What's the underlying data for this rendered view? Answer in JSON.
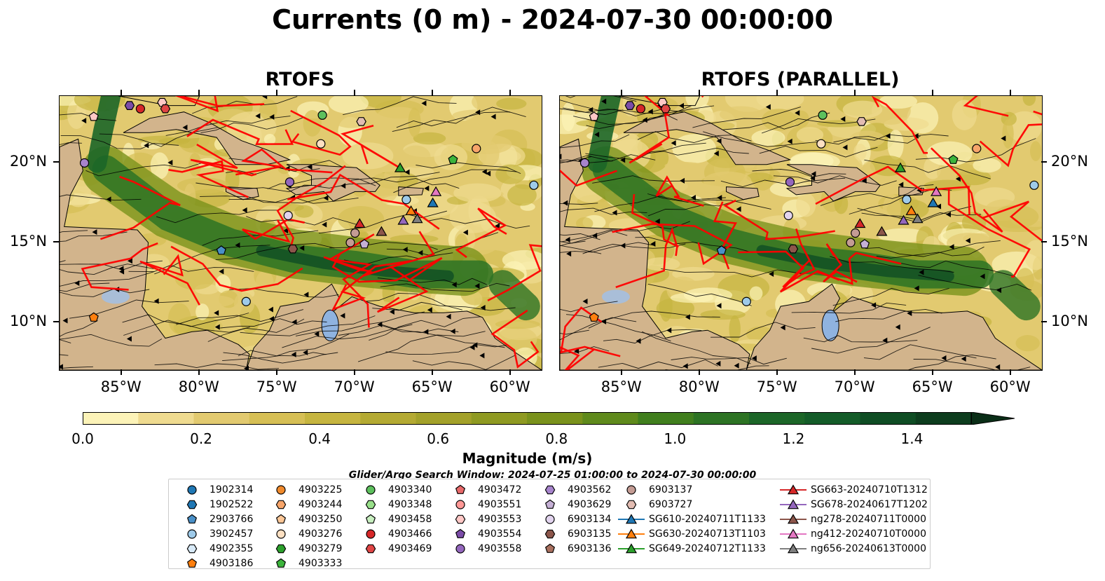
{
  "title": "Currents (0 m) - 2024-07-30 00:00:00",
  "panels": [
    {
      "title": "RTOFS"
    },
    {
      "title": "RTOFS (PARALLEL)"
    }
  ],
  "axes": {
    "lon_range": [
      -89,
      -58
    ],
    "lat_range": [
      7,
      24.2
    ],
    "lon_ticks": [
      "85°W",
      "80°W",
      "75°W",
      "70°W",
      "65°W",
      "60°W"
    ],
    "lon_values": [
      -85,
      -80,
      -75,
      -70,
      -65,
      -60
    ],
    "lat_ticks": [
      "20°N",
      "15°N",
      "10°N"
    ],
    "lat_values": [
      20,
      15,
      10
    ]
  },
  "colorbar": {
    "label": "Magnitude (m/s)",
    "ticks": [
      "0.0",
      "0.2",
      "0.4",
      "0.6",
      "0.8",
      "1.0",
      "1.2",
      "1.4"
    ],
    "tick_values": [
      0.0,
      0.2,
      0.4,
      0.6,
      0.8,
      1.0,
      1.2,
      1.4
    ],
    "min": 0.0,
    "max": 1.5,
    "colors": [
      "#fcf3b8",
      "#efdb90",
      "#e2ca70",
      "#d6bf55",
      "#c6b540",
      "#b4aa33",
      "#a3a12a",
      "#8f9a22",
      "#7a921c",
      "#5f8a1c",
      "#417f1e",
      "#2d7324",
      "#1c6628",
      "#145c29",
      "#0f4d24",
      "#0d3d1e",
      "#0a2e17"
    ]
  },
  "search_window": "Glider/Argo Search Window: 2024-07-25 01:00:00 to 2024-07-30 00:00:00",
  "land_color": "#d2b48c",
  "trajectory_color": "#ff0000",
  "legend": {
    "columns": [
      [
        {
          "label": "1902314",
          "marker": "circle",
          "color": "#1f77b4"
        },
        {
          "label": "1902522",
          "marker": "hexagon",
          "color": "#1f77b4"
        },
        {
          "label": "2903766",
          "marker": "pentagon",
          "color": "#4a90c8"
        },
        {
          "label": "3902457",
          "marker": "circle",
          "color": "#9ecae9"
        },
        {
          "label": "4902355",
          "marker": "hexagon",
          "color": "#d8eaf8"
        },
        {
          "label": "4903186",
          "marker": "pentagon",
          "color": "#ff7f0e"
        }
      ],
      [
        {
          "label": "4903225",
          "marker": "circle",
          "color": "#f08a2c"
        },
        {
          "label": "4903244",
          "marker": "hexagon",
          "color": "#f7a56a"
        },
        {
          "label": "4903250",
          "marker": "pentagon",
          "color": "#fcc797"
        },
        {
          "label": "4903276",
          "marker": "circle",
          "color": "#fde0c2"
        },
        {
          "label": "4903279",
          "marker": "hexagon",
          "color": "#2ca02c"
        },
        {
          "label": "4903333",
          "marker": "pentagon",
          "color": "#3cb43c"
        }
      ],
      [
        {
          "label": "4903340",
          "marker": "circle",
          "color": "#5dc05d"
        },
        {
          "label": "4903348",
          "marker": "hexagon",
          "color": "#98df8a"
        },
        {
          "label": "4903458",
          "marker": "pentagon",
          "color": "#c8efc0"
        },
        {
          "label": "4903466",
          "marker": "circle",
          "color": "#d62728"
        },
        {
          "label": "4903469",
          "marker": "hexagon",
          "color": "#e04545"
        }
      ],
      [
        {
          "label": "4903472",
          "marker": "pentagon",
          "color": "#e8696a"
        },
        {
          "label": "4903551",
          "marker": "circle",
          "color": "#ff9896"
        },
        {
          "label": "4903553",
          "marker": "hexagon",
          "color": "#ffc8c6"
        },
        {
          "label": "4903554",
          "marker": "pentagon",
          "color": "#7b4ca8"
        },
        {
          "label": "4903558",
          "marker": "circle",
          "color": "#9467bd"
        }
      ],
      [
        {
          "label": "4903562",
          "marker": "hexagon",
          "color": "#a784cc"
        },
        {
          "label": "4903629",
          "marker": "pentagon",
          "color": "#c5b0d5"
        },
        {
          "label": "6903134",
          "marker": "circle",
          "color": "#e2d4ee"
        },
        {
          "label": "6903135",
          "marker": "hexagon",
          "color": "#8c564b"
        },
        {
          "label": "6903136",
          "marker": "pentagon",
          "color": "#a9705f"
        }
      ],
      [
        {
          "label": "6903137",
          "marker": "circle",
          "color": "#c49c94"
        },
        {
          "label": "6903727",
          "marker": "hexagon",
          "color": "#e2bcb2"
        },
        {
          "label": "SG610-20240711T1133",
          "marker": "triangle",
          "color": "#1f77b4"
        },
        {
          "label": "SG630-20240713T1103",
          "marker": "triangle",
          "color": "#ff7f0e"
        },
        {
          "label": "SG649-20240712T1133",
          "marker": "triangle",
          "color": "#2ca02c"
        }
      ],
      [
        {
          "label": "SG663-20240710T1312",
          "marker": "triangle",
          "color": "#d62728"
        },
        {
          "label": "SG678-20240617T1202",
          "marker": "triangle",
          "color": "#9467bd"
        },
        {
          "label": "ng278-20240711T0000",
          "marker": "triangle",
          "color": "#8c564b"
        },
        {
          "label": "ng412-20240710T0000",
          "marker": "triangle",
          "color": "#e377c2"
        },
        {
          "label": "ng656-20240613T0000",
          "marker": "triangle",
          "color": "#7f7f7f"
        }
      ]
    ]
  },
  "map_markers": [
    {
      "lon": -84.5,
      "lat": 23.6,
      "marker": "hexagon",
      "color": "#7b4ca8"
    },
    {
      "lon": -83.8,
      "lat": 23.4,
      "marker": "circle",
      "color": "#d62728"
    },
    {
      "lon": -82.4,
      "lat": 23.8,
      "marker": "hexagon",
      "color": "#ffc8c6"
    },
    {
      "lon": -82.2,
      "lat": 23.4,
      "marker": "hexagon",
      "color": "#e04545"
    },
    {
      "lon": -86.8,
      "lat": 22.9,
      "marker": "pentagon",
      "color": "#ffc8c6"
    },
    {
      "lon": -87.4,
      "lat": 20.0,
      "marker": "circle",
      "color": "#a784cc"
    },
    {
      "lon": -72.2,
      "lat": 21.2,
      "marker": "circle",
      "color": "#fde0c2"
    },
    {
      "lon": -72.1,
      "lat": 23.0,
      "marker": "circle",
      "color": "#5dc05d"
    },
    {
      "lon": -69.6,
      "lat": 22.6,
      "marker": "hexagon",
      "color": "#e2bcb2"
    },
    {
      "lon": -63.7,
      "lat": 20.2,
      "marker": "pentagon",
      "color": "#3cb43c"
    },
    {
      "lon": -62.2,
      "lat": 20.9,
      "marker": "circle",
      "color": "#f7a56a"
    },
    {
      "lon": -74.2,
      "lat": 18.8,
      "marker": "circle",
      "color": "#9467bd"
    },
    {
      "lon": -74.3,
      "lat": 16.7,
      "marker": "circle",
      "color": "#e2d4ee"
    },
    {
      "lon": -58.5,
      "lat": 18.6,
      "marker": "circle",
      "color": "#9ecae9"
    },
    {
      "lon": -70.0,
      "lat": 15.6,
      "marker": "circle",
      "color": "#c49c94"
    },
    {
      "lon": -70.3,
      "lat": 15.0,
      "marker": "circle",
      "color": "#c49c94"
    },
    {
      "lon": -69.4,
      "lat": 14.9,
      "marker": "pentagon",
      "color": "#c5b0d5"
    },
    {
      "lon": -74.0,
      "lat": 14.6,
      "marker": "hexagon",
      "color": "#8c564b"
    },
    {
      "lon": -78.6,
      "lat": 14.5,
      "marker": "pentagon",
      "color": "#4a90c8"
    },
    {
      "lon": -77.0,
      "lat": 11.3,
      "marker": "circle",
      "color": "#9ecae9"
    },
    {
      "lon": -86.8,
      "lat": 10.3,
      "marker": "pentagon",
      "color": "#ff7f0e"
    },
    {
      "lon": -67.1,
      "lat": 19.7,
      "marker": "triangle",
      "color": "#2ca02c"
    },
    {
      "lon": -66.7,
      "lat": 17.7,
      "marker": "circle",
      "color": "#9ecae9"
    },
    {
      "lon": -65.0,
      "lat": 17.5,
      "marker": "triangle",
      "color": "#1f77b4"
    },
    {
      "lon": -64.8,
      "lat": 18.2,
      "marker": "triangle",
      "color": "#e377c2"
    },
    {
      "lon": -66.4,
      "lat": 17.0,
      "marker": "triangle",
      "color": "#ff7f0e"
    },
    {
      "lon": -66.9,
      "lat": 16.4,
      "marker": "triangle",
      "color": "#9467bd"
    },
    {
      "lon": -66.0,
      "lat": 16.5,
      "marker": "triangle",
      "color": "#7f7f7f"
    },
    {
      "lon": -69.7,
      "lat": 16.2,
      "marker": "triangle",
      "color": "#d62728"
    },
    {
      "lon": -68.3,
      "lat": 15.7,
      "marker": "triangle",
      "color": "#8c564b"
    }
  ],
  "parallel_marker_offsets": [
    {
      "index": 0,
      "dlon": 0,
      "dlat": 0
    }
  ]
}
